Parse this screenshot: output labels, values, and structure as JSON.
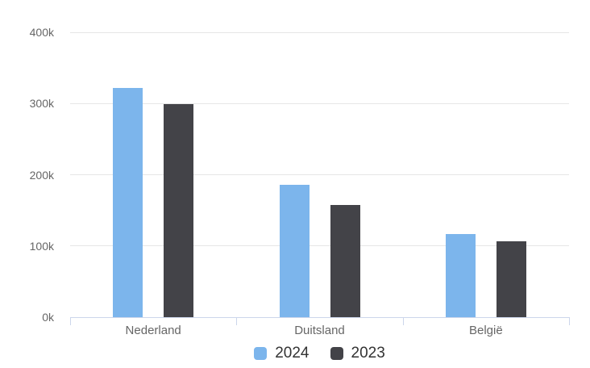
{
  "chart_data": {
    "type": "bar",
    "title": "",
    "categories": [
      "Nederland",
      "Duitsland",
      "België"
    ],
    "series": [
      {
        "name": "2024",
        "color": "#7cb5ec",
        "values": [
          322000,
          186000,
          117000
        ]
      },
      {
        "name": "2023",
        "color": "#434348",
        "values": [
          299000,
          157000,
          106000
        ]
      }
    ],
    "ylim": [
      0,
      400000
    ],
    "ytick_step": 100000,
    "ytick_labels": [
      "0k",
      "100k",
      "200k",
      "300k",
      "400k"
    ],
    "grid": true,
    "legend_position": "bottom-center",
    "colors": {
      "grid_color": "#e6e6e6",
      "axis_line_color": "#ccd6eb",
      "tick_label_color": "#666666",
      "legend_text_color": "#333333",
      "background": "#ffffff"
    }
  }
}
